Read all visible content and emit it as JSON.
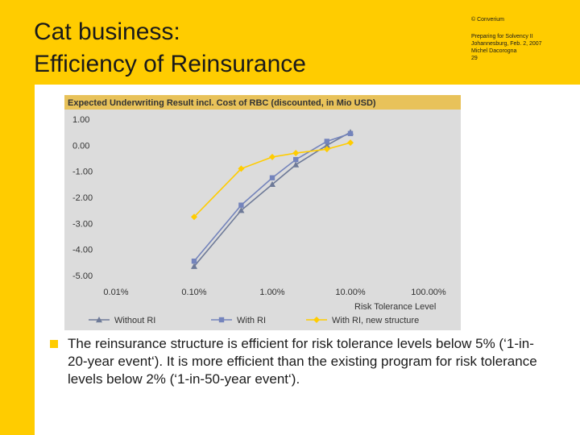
{
  "slide": {
    "title_line1": "Cat business:",
    "title_line2": "Efficiency of Reinsurance",
    "meta_copyright": "© Converium",
    "meta_line1": "Preparing for Solvency II",
    "meta_line2": "Johannesburg, Feb. 2, 2007",
    "meta_line3": "Michel Dacorogna",
    "meta_line4": "29",
    "bullet": "The reinsurance structure is efficient for risk tolerance levels below 5% (‘1-in-20-year event‘). It is more efficient than the existing program for risk tolerance levels below 2% (‘1-in-50-year event‘)."
  },
  "colors": {
    "brand_yellow": "#ffcc00",
    "chart_title_bg": "#e8c25a",
    "plot_bg": "#dcdcdc",
    "without_ri": "#6e7a98",
    "with_ri": "#7484bc",
    "with_ri_new": "#ffcc00"
  },
  "chart_data": {
    "type": "line",
    "title": "Expected Underwriting Result incl. Cost of RBC (discounted, in Mio USD)",
    "xlabel": "Risk Tolerance Level",
    "ylabel": "",
    "x_scale": "log",
    "xlim": [
      0.0001,
      1
    ],
    "ylim": [
      -5,
      1
    ],
    "x_tick_values": [
      0.0001,
      0.001,
      0.01,
      0.1,
      1
    ],
    "x_tick_labels": [
      "0.01%",
      "0.10%",
      "1.00%",
      "10.00%",
      "100.00%"
    ],
    "y_tick_values": [
      1,
      0,
      -1,
      -2,
      -3,
      -4,
      -5
    ],
    "y_tick_labels": [
      "1.00",
      "0.00",
      "-1.00",
      "-2.00",
      "-3.00",
      "-4.00",
      "-5.00"
    ],
    "grid": false,
    "legend": "bottom",
    "series": [
      {
        "name": "Without RI",
        "marker": "triangle",
        "x": [
          0.001,
          0.004,
          0.01,
          0.02,
          0.05,
          0.1
        ],
        "y": [
          -4.65,
          -2.5,
          -1.5,
          -0.75,
          0.0,
          0.5
        ]
      },
      {
        "name": "With RI",
        "marker": "square",
        "x": [
          0.001,
          0.004,
          0.01,
          0.02,
          0.05,
          0.1
        ],
        "y": [
          -4.45,
          -2.3,
          -1.25,
          -0.55,
          0.15,
          0.45
        ]
      },
      {
        "name": "With RI, new structure",
        "marker": "diamond",
        "x": [
          0.001,
          0.004,
          0.01,
          0.02,
          0.05,
          0.1
        ],
        "y": [
          -2.75,
          -0.9,
          -0.45,
          -0.3,
          -0.15,
          0.1
        ]
      }
    ]
  }
}
